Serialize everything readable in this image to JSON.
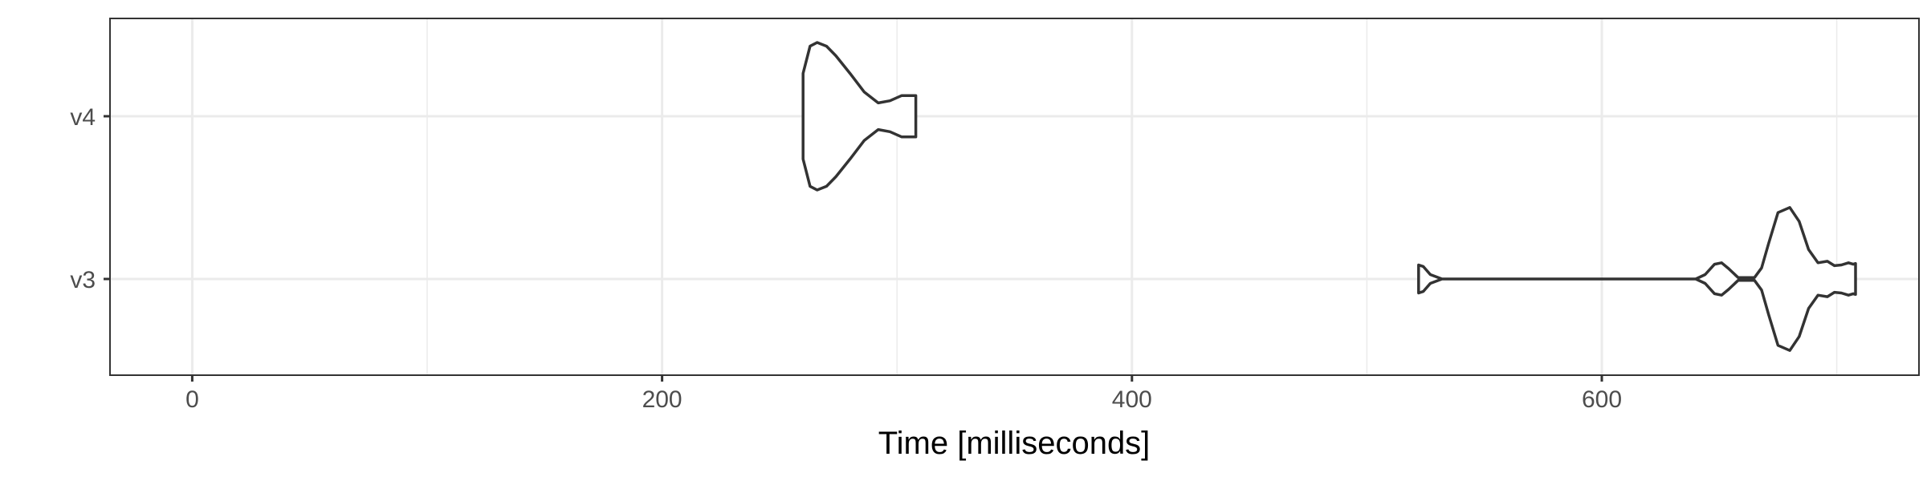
{
  "chart_data": {
    "type": "violin",
    "orientation": "horizontal",
    "xlabel": "Time [milliseconds]",
    "ylabel": "",
    "xlim": [
      -35,
      735
    ],
    "x_ticks": [
      0,
      200,
      400,
      600
    ],
    "x_tick_labels": [
      "0",
      "200",
      "400",
      "600"
    ],
    "categories": [
      "v3",
      "v4"
    ],
    "grid": true,
    "series": [
      {
        "category": "v4",
        "min": 260,
        "max": 308,
        "density": [
          [
            260,
            0.58
          ],
          [
            263,
            0.95
          ],
          [
            266,
            1.0
          ],
          [
            270,
            0.95
          ],
          [
            274,
            0.82
          ],
          [
            280,
            0.58
          ],
          [
            286,
            0.33
          ],
          [
            292,
            0.18
          ],
          [
            297,
            0.21
          ],
          [
            302,
            0.28
          ],
          [
            305,
            0.28
          ],
          [
            308,
            0.28
          ]
        ]
      },
      {
        "category": "v3",
        "min": 522,
        "max": 708,
        "density": [
          [
            522,
            0.19
          ],
          [
            524,
            0.17
          ],
          [
            527,
            0.06
          ],
          [
            532,
            0.0
          ],
          [
            545,
            0.0
          ],
          [
            600,
            0.0
          ],
          [
            640,
            0.0
          ],
          [
            644,
            0.06
          ],
          [
            648,
            0.2
          ],
          [
            651,
            0.22
          ],
          [
            654,
            0.14
          ],
          [
            658,
            0.02
          ],
          [
            665,
            0.02
          ],
          [
            668,
            0.15
          ],
          [
            671,
            0.48
          ],
          [
            675,
            0.9
          ],
          [
            680,
            0.97
          ],
          [
            684,
            0.78
          ],
          [
            688,
            0.4
          ],
          [
            692,
            0.22
          ],
          [
            696,
            0.24
          ],
          [
            699,
            0.18
          ],
          [
            702,
            0.19
          ],
          [
            705,
            0.22
          ],
          [
            707,
            0.2
          ],
          [
            708,
            0.21
          ]
        ]
      }
    ]
  }
}
